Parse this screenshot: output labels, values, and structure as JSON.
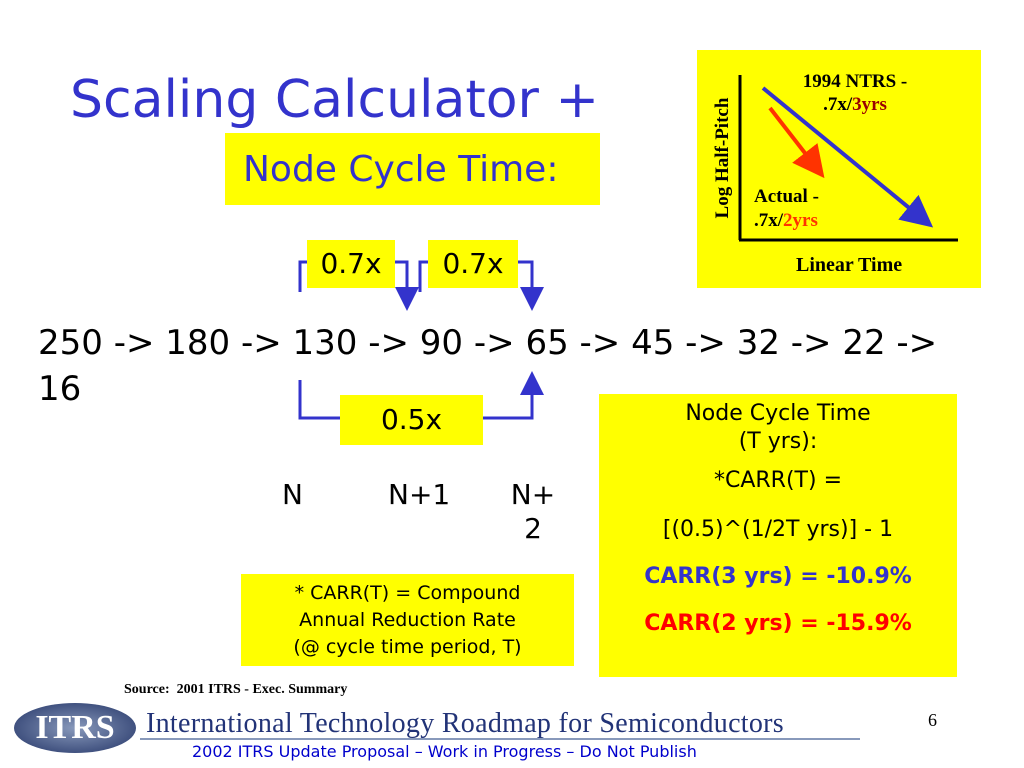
{
  "header": {
    "title": "Scaling Calculator +",
    "subtitle": "Node Cycle Time:"
  },
  "inset": {
    "axis_y": "Log Half-Pitch",
    "axis_x": "Linear Time",
    "ntrs": {
      "line1": "1994 NTRS -",
      "rate": ".7x/",
      "period": "3yrs"
    },
    "actual": {
      "line1": "Actual -",
      "rate": ".7x/",
      "period": "2yrs"
    }
  },
  "factors": {
    "first": "0.7x",
    "second": "0.7x",
    "combined": "0.5x"
  },
  "sequence": [
    "250 -> 180 -> 130 -> 90 -> 65 -> 45 -> 32 -> 22 ->",
    "16"
  ],
  "nodes": {
    "n": "N",
    "n1": "N+1",
    "n2": [
      "N+",
      "2"
    ]
  },
  "footnote": [
    "* CARR(T) = Compound",
    "Annual Reduction Rate",
    "(@ cycle time period, T)"
  ],
  "formula": {
    "heading": [
      "Node Cycle Time",
      "(T yrs):"
    ],
    "definition": "*CARR(T) =",
    "expression": "[(0.5)^(1/2T yrs)] - 1",
    "carr3": "CARR(3 yrs) = -10.9%",
    "carr2": "CARR(2 yrs) = -15.9%"
  },
  "source": "Source:  2001 ITRS - Exec. Summary",
  "page_number": "6",
  "footer": {
    "logo": "ITRS",
    "organization": "International Technology Roadmap for Semiconductors",
    "notice": "2002 ITRS Update Proposal – Work in Progress – Do Not Publish"
  }
}
